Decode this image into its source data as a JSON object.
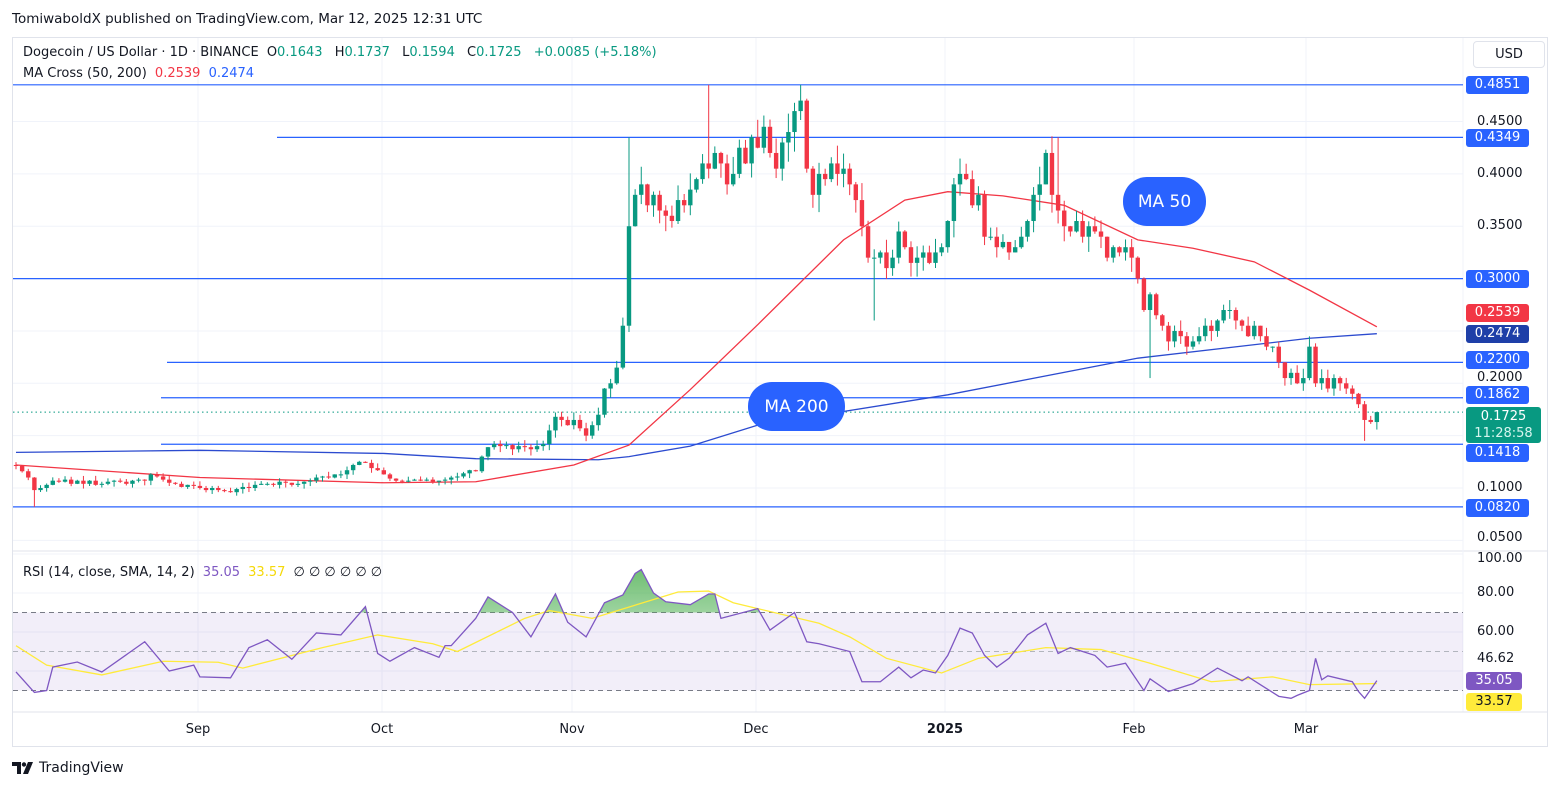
{
  "publisher": "TomiwaboldX published on TradingView.com, Mar 12, 2025 12:31 UTC",
  "legend": {
    "symbol": "Dogecoin / US Dollar · 1D · BINANCE",
    "o_label": "O",
    "o": "0.1643",
    "h_label": "H",
    "h": "0.1737",
    "l_label": "L",
    "l": "0.1594",
    "c_label": "C",
    "c": "0.1725",
    "change": "+0.0085 (+5.18%)",
    "ma_title": "MA Cross (50, 200)",
    "ma50": "0.2539",
    "ma200": "0.2474",
    "rsi_title": "RSI (14, close, SMA, 14, 2)",
    "rsi": "35.05",
    "rsi_sma": "33.57",
    "rsi_extra": "∅ ∅ ∅ ∅ ∅ ∅"
  },
  "currency_button": "USD",
  "price_axis": [
    "0.4500",
    "0.4000",
    "0.3500",
    "0.1000",
    "0.0500"
  ],
  "price_axis_hidden": "0.2000",
  "level_tags": [
    "0.4851",
    "0.4349",
    "0.3000",
    "0.2200",
    "0.1862",
    "0.1418",
    "0.0820"
  ],
  "ma50_tag": "0.2539",
  "ma200_tag": "0.2474",
  "last_price_tag": "0.1725",
  "countdown": "11:28:58",
  "rsi_axis": [
    "100.00",
    "80.00",
    "60.00",
    "46.62"
  ],
  "rsi_tag": "35.05",
  "rsi_sma_tag": "33.57",
  "x_axis": [
    "Sep",
    "Oct",
    "Nov",
    "Dec",
    "2025",
    "Feb",
    "Mar"
  ],
  "annotations": {
    "ma50": "MA 50",
    "ma200": "MA 200"
  },
  "logo": "TradingView",
  "colors": {
    "up": "#089981",
    "down": "#f23645",
    "level": "#2962ff",
    "ma50": "#f23645",
    "ma200": "#2c4bcf",
    "rsi": "#7e57c2",
    "rsi_sma": "#ffeb3b"
  },
  "chart_data": {
    "type": "candlestick",
    "symbol": "DOGE/USD",
    "interval": "1D",
    "first_date": "2024-08-02",
    "last_date": "2025-03-12",
    "ylim": [
      0.04,
      0.5
    ],
    "first_open": 0.122,
    "close": [
      0.121,
      0.116,
      0.11,
      0.098,
      0.1,
      0.103,
      0.107,
      0.106,
      0.108,
      0.104,
      0.107,
      0.104,
      0.107,
      0.103,
      0.104,
      0.106,
      0.107,
      0.106,
      0.104,
      0.107,
      0.108,
      0.107,
      0.113,
      0.111,
      0.108,
      0.105,
      0.104,
      0.101,
      0.103,
      0.102,
      0.1,
      0.098,
      0.1,
      0.098,
      0.097,
      0.096,
      0.099,
      0.101,
      0.1,
      0.103,
      0.104,
      0.104,
      0.103,
      0.106,
      0.105,
      0.103,
      0.104,
      0.106,
      0.107,
      0.11,
      0.111,
      0.11,
      0.113,
      0.113,
      0.117,
      0.122,
      0.125,
      0.124,
      0.119,
      0.117,
      0.113,
      0.109,
      0.107,
      0.106,
      0.107,
      0.108,
      0.107,
      0.108,
      0.106,
      0.107,
      0.108,
      0.11,
      0.111,
      0.114,
      0.117,
      0.116,
      0.13,
      0.139,
      0.142,
      0.14,
      0.141,
      0.137,
      0.14,
      0.139,
      0.137,
      0.14,
      0.142,
      0.155,
      0.168,
      0.165,
      0.16,
      0.165,
      0.157,
      0.15,
      0.16,
      0.17,
      0.195,
      0.2,
      0.215,
      0.255,
      0.35,
      0.38,
      0.39,
      0.37,
      0.38,
      0.365,
      0.36,
      0.355,
      0.375,
      0.37,
      0.385,
      0.395,
      0.41,
      0.405,
      0.42,
      0.41,
      0.39,
      0.4,
      0.425,
      0.41,
      0.435,
      0.425,
      0.445,
      0.42,
      0.405,
      0.43,
      0.44,
      0.46,
      0.47,
      0.405,
      0.38,
      0.4,
      0.395,
      0.41,
      0.4,
      0.405,
      0.39,
      0.375,
      0.35,
      0.32,
      0.32,
      0.325,
      0.31,
      0.32,
      0.345,
      0.33,
      0.315,
      0.32,
      0.325,
      0.315,
      0.325,
      0.33,
      0.355,
      0.39,
      0.4,
      0.395,
      0.37,
      0.38,
      0.34,
      0.34,
      0.33,
      0.335,
      0.325,
      0.33,
      0.34,
      0.355,
      0.38,
      0.39,
      0.42,
      0.38,
      0.365,
      0.35,
      0.345,
      0.355,
      0.34,
      0.35,
      0.345,
      0.34,
      0.32,
      0.33,
      0.325,
      0.33,
      0.32,
      0.3,
      0.27,
      0.285,
      0.265,
      0.255,
      0.24,
      0.25,
      0.245,
      0.235,
      0.24,
      0.245,
      0.255,
      0.25,
      0.26,
      0.27,
      0.27,
      0.26,
      0.255,
      0.245,
      0.255,
      0.245,
      0.235,
      0.235,
      0.22,
      0.205,
      0.21,
      0.2,
      0.205,
      0.235,
      0.2,
      0.205,
      0.195,
      0.205,
      0.2,
      0.195,
      0.19,
      0.18,
      0.165,
      0.163,
      0.1725
    ],
    "wick_overrides": [
      [
        3,
        "low",
        0.082
      ],
      [
        100,
        "high",
        0.4349
      ],
      [
        113,
        "high",
        0.4851
      ],
      [
        128,
        "high",
        0.4851
      ],
      [
        140,
        "low",
        0.26
      ],
      [
        170,
        "high",
        0.4349
      ],
      [
        185,
        "low",
        0.205
      ],
      [
        220,
        "low",
        0.145
      ]
    ],
    "ma50": [
      [
        0,
        0.122
      ],
      [
        30,
        0.11
      ],
      [
        60,
        0.105
      ],
      [
        75,
        0.106
      ],
      [
        91,
        0.122
      ],
      [
        100,
        0.141
      ],
      [
        110,
        0.194
      ],
      [
        121,
        0.256
      ],
      [
        135,
        0.337
      ],
      [
        145,
        0.375
      ],
      [
        152,
        0.383
      ],
      [
        161,
        0.379
      ],
      [
        171,
        0.37
      ],
      [
        183,
        0.337
      ],
      [
        192,
        0.329
      ],
      [
        202,
        0.316
      ],
      [
        211,
        0.289
      ],
      [
        222,
        0.2539
      ]
    ],
    "ma200": [
      [
        0,
        0.134
      ],
      [
        30,
        0.136
      ],
      [
        60,
        0.133
      ],
      [
        75,
        0.128
      ],
      [
        95,
        0.127
      ],
      [
        100,
        0.13
      ],
      [
        110,
        0.14
      ],
      [
        121,
        0.16
      ],
      [
        152,
        0.189
      ],
      [
        183,
        0.224
      ],
      [
        211,
        0.243
      ],
      [
        222,
        0.2474
      ]
    ],
    "levels": [
      0.4851,
      0.4349,
      0.3,
      0.22,
      0.1862,
      0.1418,
      0.082
    ],
    "rsi": {
      "ylim": [
        20,
        100
      ],
      "bands": [
        70,
        50,
        30
      ],
      "values": [
        [
          0,
          39.5
        ],
        [
          3,
          29
        ],
        [
          5,
          30
        ],
        [
          6,
          42
        ],
        [
          10,
          44.6
        ],
        [
          14,
          39.5
        ],
        [
          21,
          55
        ],
        [
          25,
          40
        ],
        [
          29,
          43
        ],
        [
          30,
          37
        ],
        [
          35,
          36.5
        ],
        [
          38,
          52
        ],
        [
          41,
          56
        ],
        [
          45,
          46
        ],
        [
          49,
          59.5
        ],
        [
          53,
          58.5
        ],
        [
          57,
          73
        ],
        [
          59,
          49
        ],
        [
          61,
          45
        ],
        [
          65,
          52
        ],
        [
          69,
          47
        ],
        [
          70,
          53
        ],
        [
          71,
          53
        ],
        [
          75,
          67
        ],
        [
          77,
          78
        ],
        [
          81,
          70
        ],
        [
          84,
          57.5
        ],
        [
          88,
          79.5
        ],
        [
          90,
          65
        ],
        [
          93,
          57.5
        ],
        [
          96,
          75
        ],
        [
          99,
          79
        ],
        [
          101,
          90
        ],
        [
          102,
          92
        ],
        [
          104,
          80
        ],
        [
          106,
          75.5
        ],
        [
          110,
          74
        ],
        [
          113,
          79.5
        ],
        [
          114,
          79.5
        ],
        [
          115,
          67
        ],
        [
          121,
          72
        ],
        [
          123,
          61
        ],
        [
          127,
          70
        ],
        [
          129,
          55
        ],
        [
          131,
          54
        ],
        [
          136,
          50
        ],
        [
          138,
          34.5
        ],
        [
          141,
          34.5
        ],
        [
          144,
          42
        ],
        [
          146,
          36.5
        ],
        [
          148,
          40.5
        ],
        [
          150,
          39
        ],
        [
          152,
          48
        ],
        [
          154,
          62
        ],
        [
          156,
          59.5
        ],
        [
          158,
          48
        ],
        [
          160,
          42
        ],
        [
          162,
          46.5
        ],
        [
          165,
          58.5
        ],
        [
          168,
          64.5
        ],
        [
          170,
          49
        ],
        [
          172,
          52
        ],
        [
          176,
          48
        ],
        [
          178,
          42
        ],
        [
          181,
          44
        ],
        [
          184,
          30
        ],
        [
          185,
          36
        ],
        [
          188,
          29.5
        ],
        [
          192,
          33.5
        ],
        [
          196,
          41.5
        ],
        [
          200,
          35
        ],
        [
          201,
          37
        ],
        [
          203,
          33
        ],
        [
          206,
          27
        ],
        [
          208,
          26
        ],
        [
          209,
          27.5
        ],
        [
          211,
          30
        ],
        [
          212,
          46.5
        ],
        [
          213,
          35.5
        ],
        [
          214,
          37.5
        ],
        [
          218,
          34.5
        ],
        [
          219,
          29.5
        ],
        [
          220,
          26
        ],
        [
          222,
          35.05
        ]
      ],
      "sma": [
        [
          0,
          53
        ],
        [
          5,
          43
        ],
        [
          14,
          38
        ],
        [
          24,
          45
        ],
        [
          33,
          44.5
        ],
        [
          37,
          41.5
        ],
        [
          50,
          52
        ],
        [
          59,
          58.5
        ],
        [
          68,
          54
        ],
        [
          72,
          50
        ],
        [
          83,
          67
        ],
        [
          87,
          71
        ],
        [
          94,
          67
        ],
        [
          108,
          80.5
        ],
        [
          113,
          81
        ],
        [
          117,
          75
        ],
        [
          121,
          72
        ],
        [
          131,
          64.5
        ],
        [
          136,
          57.5
        ],
        [
          142,
          46.5
        ],
        [
          151,
          39
        ],
        [
          157,
          46.5
        ],
        [
          168,
          52
        ],
        [
          177,
          51
        ],
        [
          185,
          44
        ],
        [
          195,
          34.5
        ],
        [
          205,
          37
        ],
        [
          211,
          33
        ],
        [
          222,
          33.57
        ]
      ]
    }
  }
}
